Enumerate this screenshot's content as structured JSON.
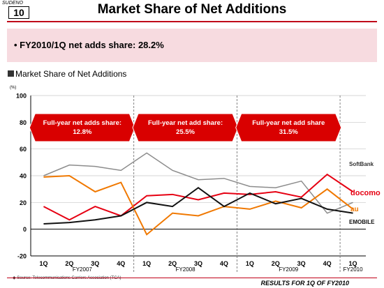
{
  "header": {
    "tag": "SUDENO",
    "page_number": "10",
    "title": "Market Share of Net Additions"
  },
  "highlight": {
    "text": "• FY2010/1Q net adds share: 28.2%"
  },
  "section_title": "Market Share of Net Additions",
  "callouts": [
    {
      "line1": "Full-year net adds share:",
      "line2": "12.8%"
    },
    {
      "line1": "Full-year net add share:",
      "line2": "25.5%"
    },
    {
      "line1": "Full-year net add share",
      "line2": "31.5%"
    }
  ],
  "footer": {
    "source": "◆ Source: Telecommunications Carriers Association (TCA)",
    "results": "RESULTS FOR 1Q OF FY2010"
  },
  "colors": {
    "accent": "#c00018",
    "docomo": "#e60012",
    "au": "#f07800",
    "softbank": "#8c8c8c",
    "emobile": "#111111",
    "callout": "#d90000"
  },
  "chart_data": {
    "type": "line",
    "ylabel": "(%)",
    "ylim": [
      -20,
      100
    ],
    "yticks": [
      -20,
      0,
      20,
      40,
      60,
      80,
      100
    ],
    "categories": [
      "1Q",
      "2Q",
      "3Q",
      "4Q",
      "1Q",
      "2Q",
      "3Q",
      "4Q",
      "1Q",
      "2Q",
      "3Q",
      "4Q",
      "1Q"
    ],
    "year_groups": [
      {
        "label": "FY2007",
        "start": 0,
        "end": 3
      },
      {
        "label": "FY2008",
        "start": 4,
        "end": 7
      },
      {
        "label": "FY2009",
        "start": 8,
        "end": 11
      },
      {
        "label": "FY2010",
        "start": 12,
        "end": 12
      }
    ],
    "series": [
      {
        "name": "SoftBank",
        "color": "#8c8c8c",
        "values": [
          40,
          48,
          47,
          44,
          57,
          44,
          37,
          38,
          32,
          31,
          36,
          12,
          20
        ]
      },
      {
        "name": "docomo",
        "color": "#e60012",
        "values": [
          17,
          7,
          17,
          10,
          25,
          26,
          22,
          27,
          26,
          28,
          24,
          41,
          28
        ]
      },
      {
        "name": "au",
        "color": "#f07800",
        "values": [
          39,
          40,
          28,
          35,
          -4,
          12,
          10,
          17,
          15,
          21,
          16,
          30,
          15
        ]
      },
      {
        "name": "EMOBILE",
        "color": "#111111",
        "values": [
          4,
          5,
          7,
          10,
          20,
          17,
          31,
          17,
          27,
          19,
          23,
          15,
          12
        ]
      }
    ]
  }
}
